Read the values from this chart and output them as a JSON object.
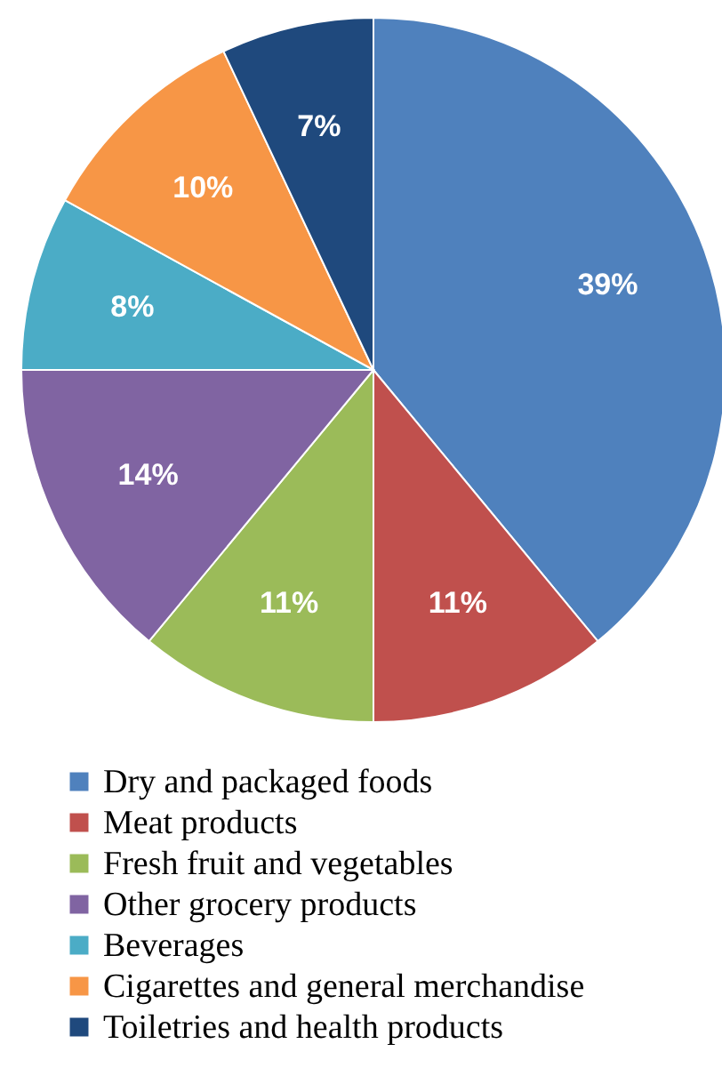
{
  "chart_data": {
    "type": "pie",
    "categories": [
      "Dry and packaged foods",
      "Meat products",
      "Fresh fruit and vegetables",
      "Other grocery products",
      "Beverages",
      "Cigarettes and general merchandise",
      "Toiletries and health products"
    ],
    "values": [
      39,
      11,
      11,
      14,
      8,
      10,
      7
    ],
    "colors": [
      "#4f81bd",
      "#c0504d",
      "#9bbb59",
      "#8064a2",
      "#4bacc6",
      "#f79646",
      "#1f497d"
    ],
    "value_labels": [
      "39%",
      "11%",
      "11%",
      "14%",
      "8%",
      "10%",
      "7%"
    ],
    "legend": "bottom"
  }
}
